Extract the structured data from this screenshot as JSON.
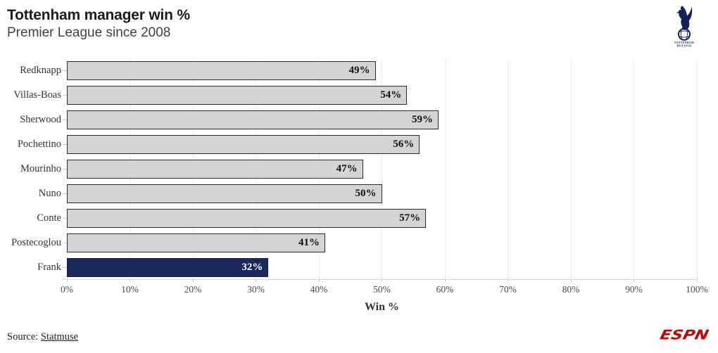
{
  "header": {
    "title": "Tottenham manager win %",
    "subtitle": "Premier League since 2008",
    "crest_lines": [
      "TOTTENHAM",
      "HOTSPUR"
    ]
  },
  "chart_data": {
    "type": "bar",
    "orientation": "horizontal",
    "title": "Tottenham manager win %",
    "subtitle": "Premier League since 2008",
    "categories": [
      "Redknapp",
      "Villas-Boas",
      "Sherwood",
      "Pochettino",
      "Mourinho",
      "Nuno",
      "Conte",
      "Postecoglou",
      "Frank"
    ],
    "values": [
      49,
      54,
      59,
      56,
      47,
      50,
      57,
      41,
      32
    ],
    "value_labels": [
      "49%",
      "54%",
      "59%",
      "56%",
      "47%",
      "50%",
      "57%",
      "41%",
      "32%"
    ],
    "xlabel": "Win %",
    "ylabel": "",
    "xlim": [
      0,
      100
    ],
    "x_ticks": [
      "0%",
      "10%",
      "20%",
      "30%",
      "40%",
      "50%",
      "60%",
      "70%",
      "80%",
      "90%",
      "100%"
    ],
    "grid": true,
    "legend": "none",
    "bar_color_default": "#d4d4d4",
    "bar_border_color": "#2b2b2b",
    "highlight_index": 8,
    "highlight_color": "#1b2a5c",
    "highlight_value_color": "#ffffff",
    "value_color": "#111111"
  },
  "footer": {
    "source_prefix": "Source: ",
    "source_link": "Statmuse",
    "espn_logo": "ESPN"
  },
  "colors": {
    "navy": "#132257",
    "espn_red": "#c80000",
    "gridline": "#ececec",
    "axis_line": "#d9d9d9"
  }
}
